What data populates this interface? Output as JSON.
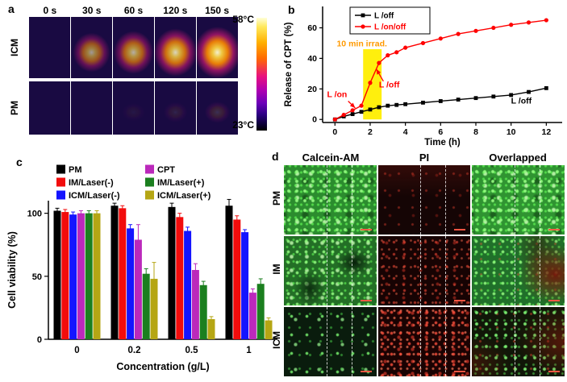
{
  "panel_a": {
    "label": "a",
    "time_labels": [
      "0 s",
      "30 s",
      "60 s",
      "120 s",
      "150 s"
    ],
    "row_labels": [
      "ICM",
      "PM"
    ],
    "colorbar": {
      "top_label": "58°C",
      "bottom_label": "23°C"
    },
    "icm_heat_levels": [
      0,
      0.62,
      0.72,
      0.88,
      1
    ],
    "pm_heat_levels": [
      0,
      0,
      0.05,
      0.1,
      0.16
    ]
  },
  "panel_b": {
    "label": "b"
  },
  "panel_c": {
    "label": "c"
  },
  "panel_d": {
    "label": "d",
    "col_headers": [
      "Calcein-AM",
      "PI",
      "Overlapped"
    ],
    "row_labels": [
      "PM",
      "IM",
      "ICM"
    ],
    "grid_textures": [
      [
        "green-bright",
        "red-faint",
        "overlap-pm"
      ],
      [
        "green-patchy",
        "red-mid",
        "overlap-im"
      ],
      [
        "green-sparse",
        "red-bright",
        "overlap-icm"
      ]
    ]
  },
  "chart_data": [
    {
      "id": "cpt-release",
      "type": "line",
      "title": "",
      "xlabel": "Time (h)",
      "ylabel": "Release of CPT (%)",
      "xlim": [
        -0.7,
        12.9
      ],
      "ylim": [
        -2,
        74
      ],
      "xticks": [
        0,
        2,
        4,
        6,
        8,
        10,
        12
      ],
      "yticks": [
        0,
        20,
        40,
        60
      ],
      "legend_position": "top-left",
      "highlight_band": {
        "x0": 1.6,
        "x1": 2.65,
        "y0": 0,
        "y1": 46,
        "color": "#ffee00"
      },
      "annotations": [
        {
          "text": "10 min irrad.",
          "x": 0.1,
          "y": 48,
          "color": "#ff9900"
        },
        {
          "text": "L /on",
          "x": -0.45,
          "y": 14.5,
          "color": "#ff0000",
          "arrow": {
            "x1": 0.75,
            "y1": 12,
            "x2": 1.15,
            "y2": 7.5
          }
        },
        {
          "text": "L /off",
          "x": 2.5,
          "y": 21,
          "color": "#ff0000",
          "arrow": {
            "x1": 2.75,
            "y1": 25,
            "x2": 2.35,
            "y2": 33
          }
        },
        {
          "text": "L /off",
          "x": 10.0,
          "y": 10.5,
          "color": "#000000"
        }
      ],
      "series": [
        {
          "name": "L /off",
          "color": "#000000",
          "marker": "square",
          "x": [
            0,
            0.5,
            1,
            1.5,
            2,
            2.5,
            3,
            3.5,
            4,
            5,
            6,
            7,
            8,
            9,
            10,
            11,
            12
          ],
          "y": [
            0,
            2,
            3.5,
            5,
            6.5,
            8,
            9,
            9.5,
            10,
            11,
            12,
            13,
            14,
            15,
            16,
            18,
            20.5
          ]
        },
        {
          "name": "L /on/off",
          "color": "#ff0000",
          "marker": "circle",
          "x": [
            0,
            0.5,
            1,
            1.5,
            2,
            2.5,
            3,
            3.5,
            4,
            5,
            6,
            7,
            8,
            9,
            10,
            11,
            12
          ],
          "y": [
            0,
            3,
            6,
            9,
            24,
            37,
            42,
            44,
            47,
            50,
            53,
            56,
            58,
            60,
            62,
            63.5,
            65
          ]
        }
      ]
    },
    {
      "id": "cell-viability",
      "type": "bar",
      "title": "",
      "xlabel": "Concentration (g/L)",
      "ylabel": "Cell viability (%)",
      "categories": [
        "0",
        "0.2",
        "0.5",
        "1"
      ],
      "ylim": [
        0,
        110
      ],
      "yticks": [
        0,
        50,
        100
      ],
      "legend_columns": [
        [
          0,
          1,
          2
        ],
        [
          3,
          4,
          5
        ]
      ],
      "series": [
        {
          "name": "PM",
          "color": "#000000",
          "values": [
            102,
            106,
            105,
            106
          ],
          "errors": [
            2,
            2,
            3,
            5
          ]
        },
        {
          "name": "IM/Laser(-)",
          "color": "#f20c0c",
          "values": [
            101,
            104,
            97,
            95
          ],
          "errors": [
            2,
            2,
            3,
            3
          ]
        },
        {
          "name": "ICM/Laser(-)",
          "color": "#1414ff",
          "values": [
            99,
            88,
            86,
            85
          ],
          "errors": [
            2,
            3,
            3,
            2
          ]
        },
        {
          "name": "CPT",
          "color": "#bb29bb",
          "values": [
            100,
            79,
            55,
            37
          ],
          "errors": [
            2,
            12,
            5,
            3
          ]
        },
        {
          "name": "IM/Laser(+)",
          "color": "#1b7f1f",
          "values": [
            100,
            52,
            43,
            44
          ],
          "errors": [
            2,
            4,
            3,
            4
          ]
        },
        {
          "name": "ICM/Laser(+)",
          "color": "#b5a614",
          "values": [
            100,
            48,
            16,
            15
          ],
          "errors": [
            2,
            13,
            2,
            2
          ]
        }
      ]
    }
  ]
}
